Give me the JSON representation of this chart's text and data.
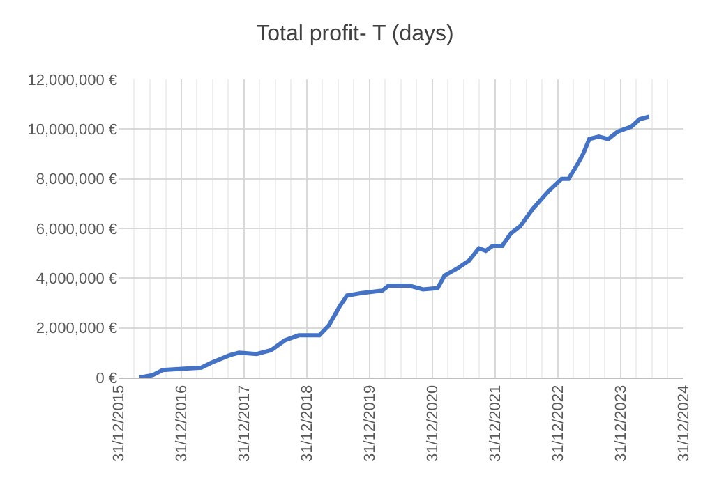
{
  "chart_data": {
    "type": "line",
    "title": "Total profit- T (days)",
    "x": [
      "2016-05-01",
      "2016-07-18",
      "2016-09-12",
      "2017-01-01",
      "2017-04-26",
      "2017-06-25",
      "2017-10-08",
      "2017-12-01",
      "2018-03-14",
      "2018-06-06",
      "2018-08-25",
      "2018-11-14",
      "2019-03-14",
      "2019-05-08",
      "2019-07-13",
      "2019-08-22",
      "2019-11-14",
      "2020-03-14",
      "2020-04-20",
      "2020-08-18",
      "2020-11-06",
      "2021-01-30",
      "2021-03-11",
      "2021-05-27",
      "2021-07-31",
      "2021-09-27",
      "2021-11-06",
      "2021-12-16",
      "2022-02-10",
      "2022-04-01",
      "2022-05-27",
      "2022-08-08",
      "2022-11-06",
      "2023-01-22",
      "2023-03-03",
      "2023-04-17",
      "2023-05-27",
      "2023-07-02",
      "2023-08-26",
      "2023-10-20",
      "2023-12-14",
      "2024-03-03",
      "2024-04-20",
      "2024-06-14"
    ],
    "series": [
      {
        "color": "#4472c4",
        "values": [
          0,
          100000,
          300000,
          350000,
          400000,
          600000,
          900000,
          1000000,
          950000,
          1100000,
          1500000,
          1700000,
          1700000,
          2100000,
          2900000,
          3300000,
          3400000,
          3500000,
          3700000,
          3700000,
          3550000,
          3600000,
          4100000,
          4400000,
          4700000,
          5200000,
          5100000,
          5300000,
          5300000,
          5800000,
          6100000,
          6800000,
          7500000,
          8000000,
          8000000,
          8500000,
          9000000,
          9600000,
          9700000,
          9600000,
          9900000,
          10100000,
          10400000,
          10500000
        ]
      }
    ],
    "xlim": [
      "2015-12-31",
      "2024-12-31"
    ],
    "xticks": [
      {
        "value": "2015-12-31",
        "label": "31/12/2015"
      },
      {
        "value": "2016-12-31",
        "label": "31/12/2016"
      },
      {
        "value": "2017-12-31",
        "label": "31/12/2017"
      },
      {
        "value": "2018-12-31",
        "label": "31/12/2018"
      },
      {
        "value": "2019-12-31",
        "label": "31/12/2019"
      },
      {
        "value": "2020-12-31",
        "label": "31/12/2020"
      },
      {
        "value": "2021-12-31",
        "label": "31/12/2021"
      },
      {
        "value": "2022-12-31",
        "label": "31/12/2022"
      },
      {
        "value": "2023-12-31",
        "label": "31/12/2023"
      },
      {
        "value": "2024-12-31",
        "label": "31/12/2024"
      }
    ],
    "ylim": [
      0,
      12000000
    ],
    "yticks": [
      {
        "value": 0,
        "label": "0 €"
      },
      {
        "value": 2000000,
        "label": "2,000,000 €"
      },
      {
        "value": 4000000,
        "label": "4,000,000 €"
      },
      {
        "value": 6000000,
        "label": "6,000,000 €"
      },
      {
        "value": 8000000,
        "label": "8,000,000 €"
      },
      {
        "value": 10000000,
        "label": "10,000,000 €"
      },
      {
        "value": 12000000,
        "label": "12,000,000 €"
      }
    ],
    "grid": true
  }
}
